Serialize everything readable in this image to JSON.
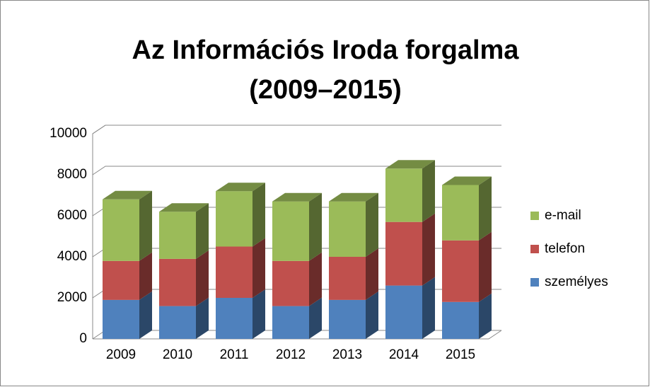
{
  "chart_data": {
    "type": "bar",
    "stacked": true,
    "three_d": true,
    "title": [
      "Az Információs Iroda forgalma",
      "(2009–2015)"
    ],
    "categories": [
      "2009",
      "2010",
      "2011",
      "2012",
      "2013",
      "2014",
      "2015"
    ],
    "series": [
      {
        "name": "személyes",
        "color": "#4f81bd",
        "values": [
          1900,
          1600,
          2000,
          1600,
          1900,
          2600,
          1800
        ]
      },
      {
        "name": "telefon",
        "color": "#c0504d",
        "values": [
          1900,
          2300,
          2500,
          2200,
          2100,
          3100,
          3000
        ]
      },
      {
        "name": "e-mail",
        "color": "#9bbb59",
        "values": [
          3000,
          2300,
          2700,
          2900,
          2700,
          2600,
          2700
        ]
      }
    ],
    "ylim": [
      0,
      10000
    ],
    "yticks": [
      0,
      2000,
      4000,
      6000,
      8000,
      10000
    ],
    "grid": true,
    "legend": "right"
  }
}
